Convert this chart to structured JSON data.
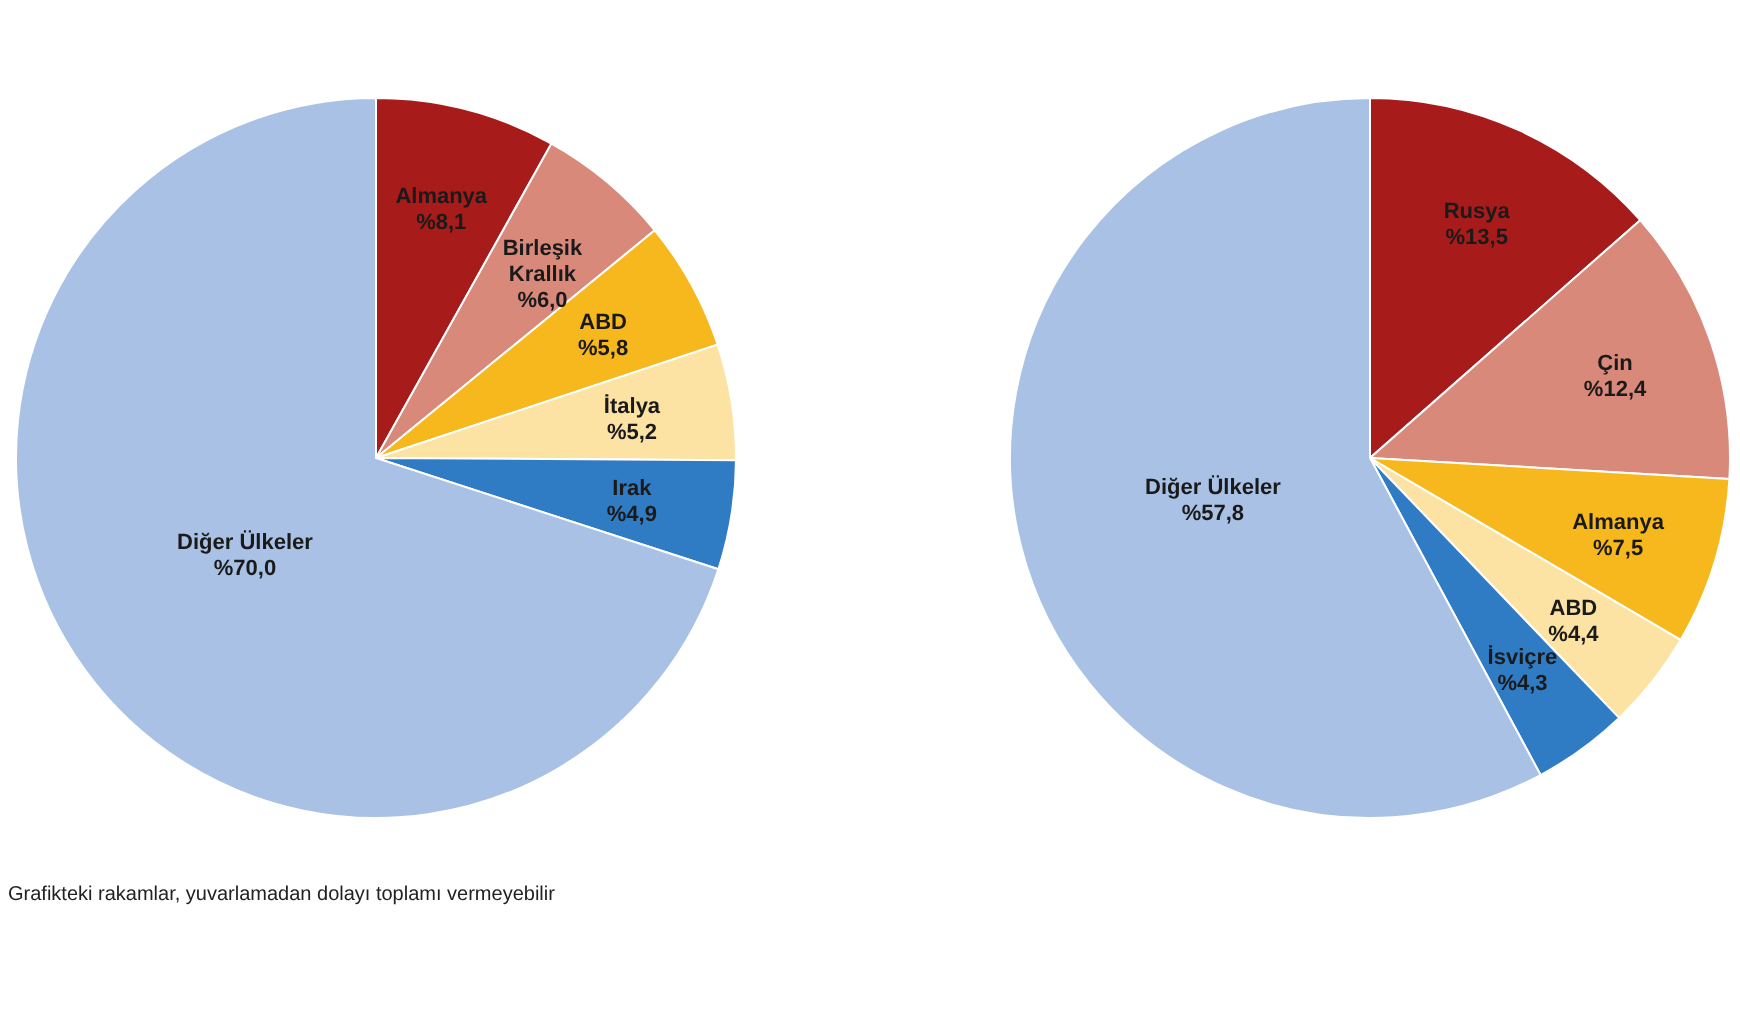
{
  "chart_data": [
    {
      "type": "pie",
      "categories": [
        "Almanya",
        "Birleşik Krallık",
        "ABD",
        "İtalya",
        "Irak",
        "Diğer Ülkeler"
      ],
      "values": [
        8.1,
        6.0,
        5.8,
        5.2,
        4.9,
        70.0
      ],
      "value_labels": [
        "%8,1",
        "%6,0",
        "%5,8",
        "%5,2",
        "%4,9",
        "%70,0"
      ],
      "colors": [
        "#a71b1b",
        "#d9897a",
        "#f6b81c",
        "#fce3a4",
        "#2f7cc4",
        "#a8c1e4"
      ],
      "legend": false,
      "annotations": [
        "Grafikteki rakamlar, yuvarlamadan dolayı toplamı vermeyebilir"
      ]
    },
    {
      "type": "pie",
      "categories": [
        "Rusya",
        "Çin",
        "Almanya",
        "ABD",
        "İsviçre",
        "Diğer Ülkeler"
      ],
      "values": [
        13.5,
        12.4,
        7.5,
        4.4,
        4.3,
        57.8
      ],
      "value_labels": [
        "%13,5",
        "%12,4",
        "%7,5",
        "%4,4",
        "%4,3",
        "%57,8"
      ],
      "colors": [
        "#a71b1b",
        "#d9897a",
        "#f6b81c",
        "#fce3a4",
        "#2f7cc4",
        "#a8c1e4"
      ],
      "legend": false
    }
  ]
}
